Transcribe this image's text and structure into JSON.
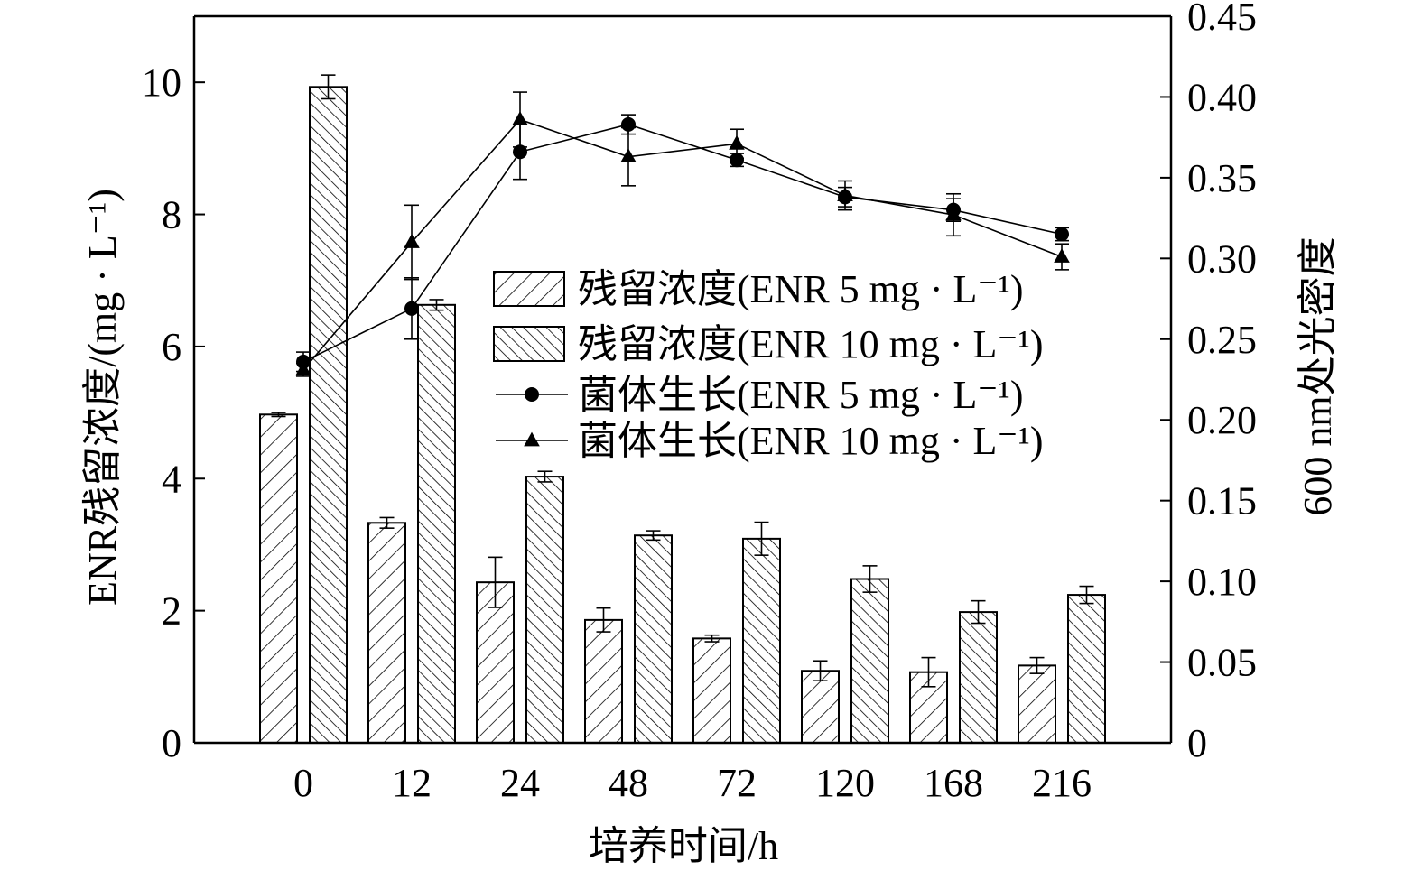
{
  "chart_data": {
    "type": "bar",
    "xlabel": "培养时间/h",
    "ylabel": "ENR残留浓度/(mg · L⁻¹)",
    "y2label": "600 nm处光密度",
    "ylim": [
      0,
      11
    ],
    "y2lim": [
      0,
      0.45
    ],
    "categories": [
      "0",
      "12",
      "24",
      "48",
      "72",
      "120",
      "168",
      "216"
    ],
    "yticks": [
      "0",
      "2",
      "4",
      "6",
      "8",
      "10"
    ],
    "y2ticks": [
      "0",
      "0.05",
      "0.10",
      "0.15",
      "0.20",
      "0.25",
      "0.30",
      "0.35",
      "0.40",
      "0.45"
    ],
    "series": [
      {
        "name": "残留浓度(ENR 5 mg · L⁻¹)",
        "kind": "bar",
        "axis": "left",
        "pattern": "hatch-forward",
        "values": [
          4.97,
          3.33,
          2.43,
          1.86,
          1.58,
          1.09,
          1.07,
          1.17
        ],
        "errors": [
          0.03,
          0.08,
          0.38,
          0.18,
          0.05,
          0.15,
          0.22,
          0.12
        ]
      },
      {
        "name": "残留浓度(ENR 10 mg · L⁻¹)",
        "kind": "bar",
        "axis": "left",
        "pattern": "hatch-backward",
        "values": [
          9.93,
          6.63,
          4.03,
          3.14,
          3.09,
          2.48,
          1.98,
          2.24
        ],
        "errors": [
          0.18,
          0.08,
          0.08,
          0.07,
          0.25,
          0.2,
          0.17,
          0.13
        ]
      },
      {
        "name": "菌体生长(ENR 5 mg · L⁻¹)",
        "kind": "line",
        "axis": "right",
        "marker": "circle",
        "values": [
          0.236,
          0.269,
          0.366,
          0.383,
          0.361,
          0.338,
          0.33,
          0.315
        ],
        "errors": [
          0.006,
          0.019,
          0.017,
          0.006,
          0.004,
          0.006,
          0.007,
          0.004
        ]
      },
      {
        "name": "菌体生长(ENR 10 mg · L⁻¹)",
        "kind": "line",
        "axis": "right",
        "marker": "triangle",
        "values": [
          0.231,
          0.31,
          0.386,
          0.363,
          0.371,
          0.339,
          0.327,
          0.301
        ],
        "errors": [
          0.004,
          0.023,
          0.017,
          0.018,
          0.009,
          0.009,
          0.013,
          0.008
        ]
      }
    ],
    "legend_position": "center-right",
    "grid": false
  }
}
